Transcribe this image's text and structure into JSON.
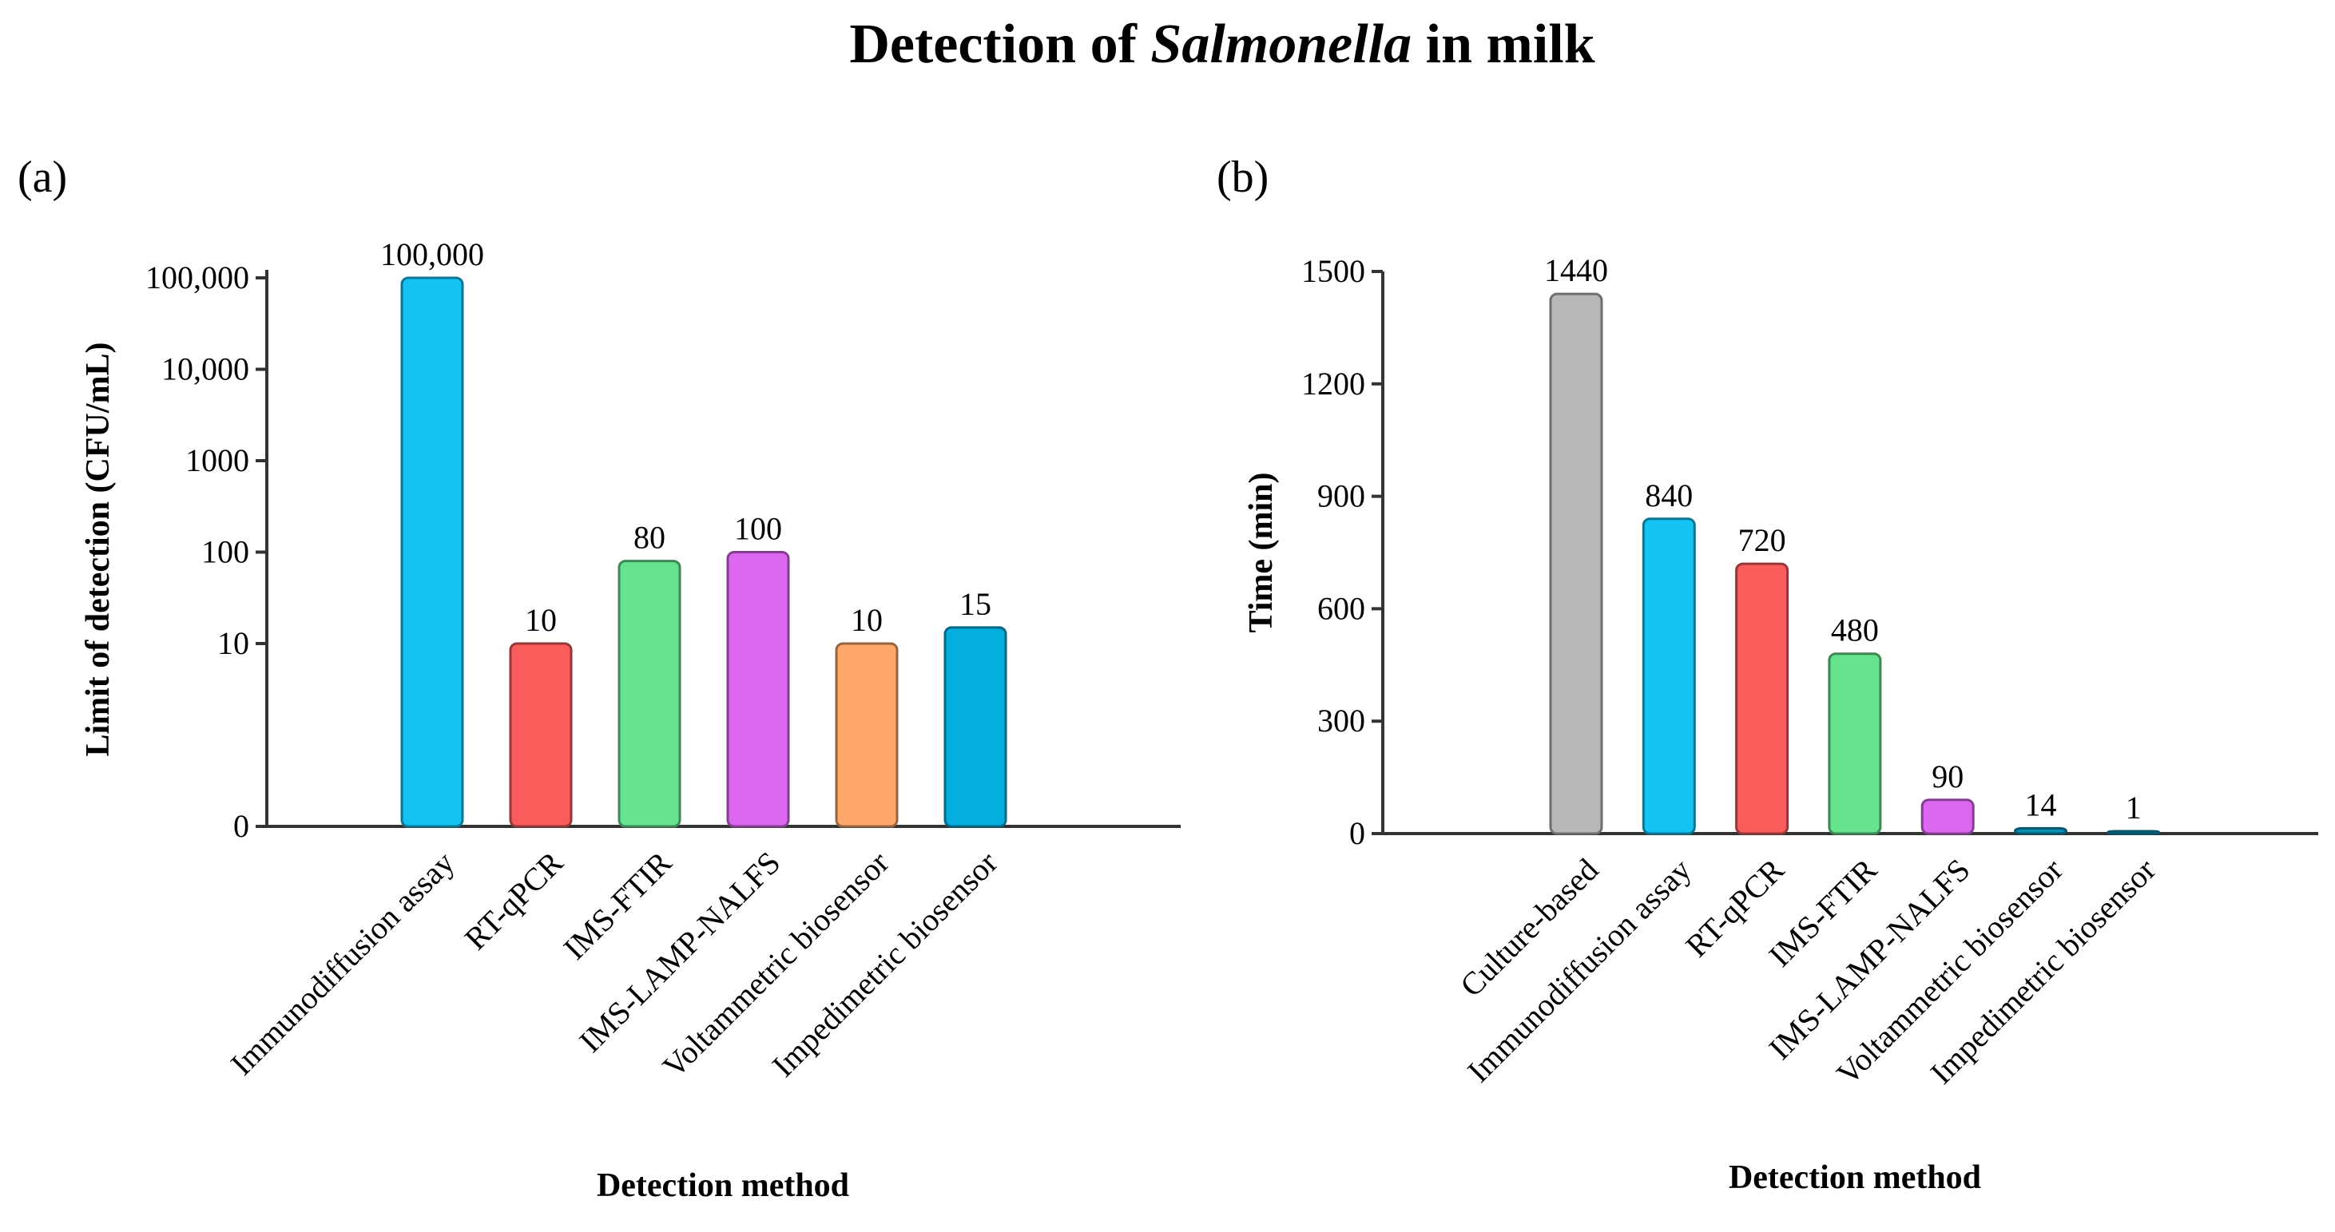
{
  "figure": {
    "title_parts": [
      "Detection of ",
      "Salmonella",
      " in milk"
    ],
    "panels": [
      "(a)",
      "(b)"
    ]
  },
  "chart_data": [
    {
      "type": "bar",
      "panel": "(a)",
      "xlabel": "Detection method",
      "ylabel": "Limit of detection (CFU/mL)",
      "yscale": "log",
      "yticks": [
        0,
        10,
        100,
        1000,
        10000,
        100000
      ],
      "ytick_labels": [
        "0",
        "10",
        "100",
        "1000",
        "10,000",
        "100,000"
      ],
      "categories": [
        "Immunodiffusion assay",
        "RT-qPCR",
        "IMS-FTIR",
        "IMS-LAMP-NALFS",
        "Voltammetric biosensor",
        "Impedimetric biosensor"
      ],
      "values": [
        100000,
        10,
        80,
        100,
        10,
        15
      ],
      "data_labels": [
        "100,000",
        "10",
        "80",
        "100",
        "10",
        "15"
      ],
      "colors": [
        "#12c3f4",
        "#fa5c5c",
        "#66e38e",
        "#db68ef",
        "#fda76a",
        "#04aede"
      ],
      "grid": false,
      "legend": "none"
    },
    {
      "type": "bar",
      "panel": "(b)",
      "xlabel": "Detection method",
      "ylabel": "Time (min)",
      "yscale": "linear",
      "ylim": [
        0,
        1500
      ],
      "yticks": [
        0,
        300,
        600,
        900,
        1200,
        1500
      ],
      "ytick_labels": [
        "0",
        "300",
        "600",
        "900",
        "1200",
        "1500"
      ],
      "categories": [
        "Culture-based",
        "Immunodiffusion assay",
        "RT-qPCR",
        "IMS-FTIR",
        "IMS-LAMP-NALFS",
        "Voltammetric biosensor",
        "Impedimetric biosensor"
      ],
      "values": [
        1440,
        840,
        720,
        480,
        90,
        14,
        1
      ],
      "data_labels": [
        "1440",
        "840",
        "720",
        "480",
        "90",
        "14",
        "1"
      ],
      "colors": [
        "#b7b7b7",
        "#12c3f4",
        "#fa5c5c",
        "#66e38e",
        "#db68ef",
        "#0a8fb5",
        "#0a8fb5"
      ],
      "grid": false,
      "legend": "none"
    }
  ]
}
